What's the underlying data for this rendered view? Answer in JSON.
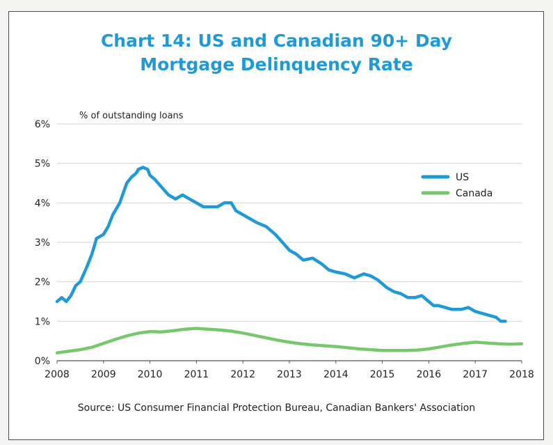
{
  "chart_data": {
    "type": "line",
    "title_line1": "Chart 14: US and Canadian 90+ Day",
    "title_line2": "Mortgage Delinquency Rate",
    "ylabel": "% of outstanding loans",
    "ylim": [
      0,
      6
    ],
    "xlim": [
      2008,
      2018
    ],
    "y_ticks": [
      "0%",
      "1%",
      "2%",
      "3%",
      "4%",
      "5%",
      "6%"
    ],
    "x_ticks": [
      "2008",
      "2009",
      "2010",
      "2011",
      "2012",
      "2013",
      "2014",
      "2015",
      "2016",
      "2017",
      "2018"
    ],
    "grid": true,
    "legend_position": "right",
    "series": [
      {
        "name": "US",
        "color": "#1f9ad6",
        "x": [
          2008.0,
          2008.1,
          2008.2,
          2008.3,
          2008.4,
          2008.5,
          2008.65,
          2008.75,
          2008.85,
          2009.0,
          2009.1,
          2009.2,
          2009.35,
          2009.5,
          2009.6,
          2009.7,
          2009.75,
          2009.85,
          2009.95,
          2010.0,
          2010.1,
          2010.25,
          2010.4,
          2010.55,
          2010.7,
          2010.85,
          2011.0,
          2011.15,
          2011.3,
          2011.45,
          2011.6,
          2011.75,
          2011.85,
          2012.0,
          2012.15,
          2012.3,
          2012.5,
          2012.7,
          2012.85,
          2013.0,
          2013.15,
          2013.3,
          2013.5,
          2013.7,
          2013.85,
          2014.0,
          2014.2,
          2014.4,
          2014.6,
          2014.75,
          2014.9,
          2015.0,
          2015.1,
          2015.25,
          2015.4,
          2015.55,
          2015.7,
          2015.85,
          2016.0,
          2016.1,
          2016.2,
          2016.35,
          2016.5,
          2016.7,
          2016.85,
          2017.0,
          2017.15,
          2017.3,
          2017.45,
          2017.55,
          2017.65
        ],
        "values": [
          1.5,
          1.6,
          1.5,
          1.65,
          1.9,
          2.0,
          2.4,
          2.7,
          3.1,
          3.2,
          3.4,
          3.7,
          4.0,
          4.5,
          4.65,
          4.75,
          4.85,
          4.9,
          4.85,
          4.7,
          4.6,
          4.4,
          4.2,
          4.1,
          4.2,
          4.1,
          4.0,
          3.9,
          3.9,
          3.9,
          4.0,
          4.0,
          3.8,
          3.7,
          3.6,
          3.5,
          3.4,
          3.2,
          3.0,
          2.8,
          2.7,
          2.55,
          2.6,
          2.45,
          2.3,
          2.25,
          2.2,
          2.1,
          2.2,
          2.15,
          2.05,
          1.95,
          1.85,
          1.75,
          1.7,
          1.6,
          1.6,
          1.65,
          1.5,
          1.4,
          1.4,
          1.35,
          1.3,
          1.3,
          1.35,
          1.25,
          1.2,
          1.15,
          1.1,
          1.0,
          1.0
        ]
      },
      {
        "name": "Canada",
        "color": "#77c86c",
        "x": [
          2008.0,
          2008.25,
          2008.5,
          2008.75,
          2009.0,
          2009.25,
          2009.5,
          2009.75,
          2010.0,
          2010.25,
          2010.5,
          2010.75,
          2011.0,
          2011.25,
          2011.5,
          2011.75,
          2012.0,
          2012.25,
          2012.5,
          2012.75,
          2013.0,
          2013.25,
          2013.5,
          2013.75,
          2014.0,
          2014.25,
          2014.5,
          2014.75,
          2015.0,
          2015.25,
          2015.5,
          2015.75,
          2016.0,
          2016.25,
          2016.5,
          2016.75,
          2017.0,
          2017.25,
          2017.5,
          2017.75,
          2018.0
        ],
        "values": [
          0.2,
          0.24,
          0.28,
          0.34,
          0.44,
          0.54,
          0.63,
          0.7,
          0.74,
          0.73,
          0.76,
          0.8,
          0.82,
          0.8,
          0.78,
          0.75,
          0.7,
          0.64,
          0.58,
          0.52,
          0.47,
          0.43,
          0.4,
          0.38,
          0.36,
          0.33,
          0.3,
          0.28,
          0.26,
          0.26,
          0.26,
          0.27,
          0.3,
          0.35,
          0.4,
          0.44,
          0.47,
          0.45,
          0.43,
          0.42,
          0.43
        ]
      }
    ],
    "source": "Source: US Consumer Financial Protection Bureau, Canadian Bankers' Association"
  }
}
